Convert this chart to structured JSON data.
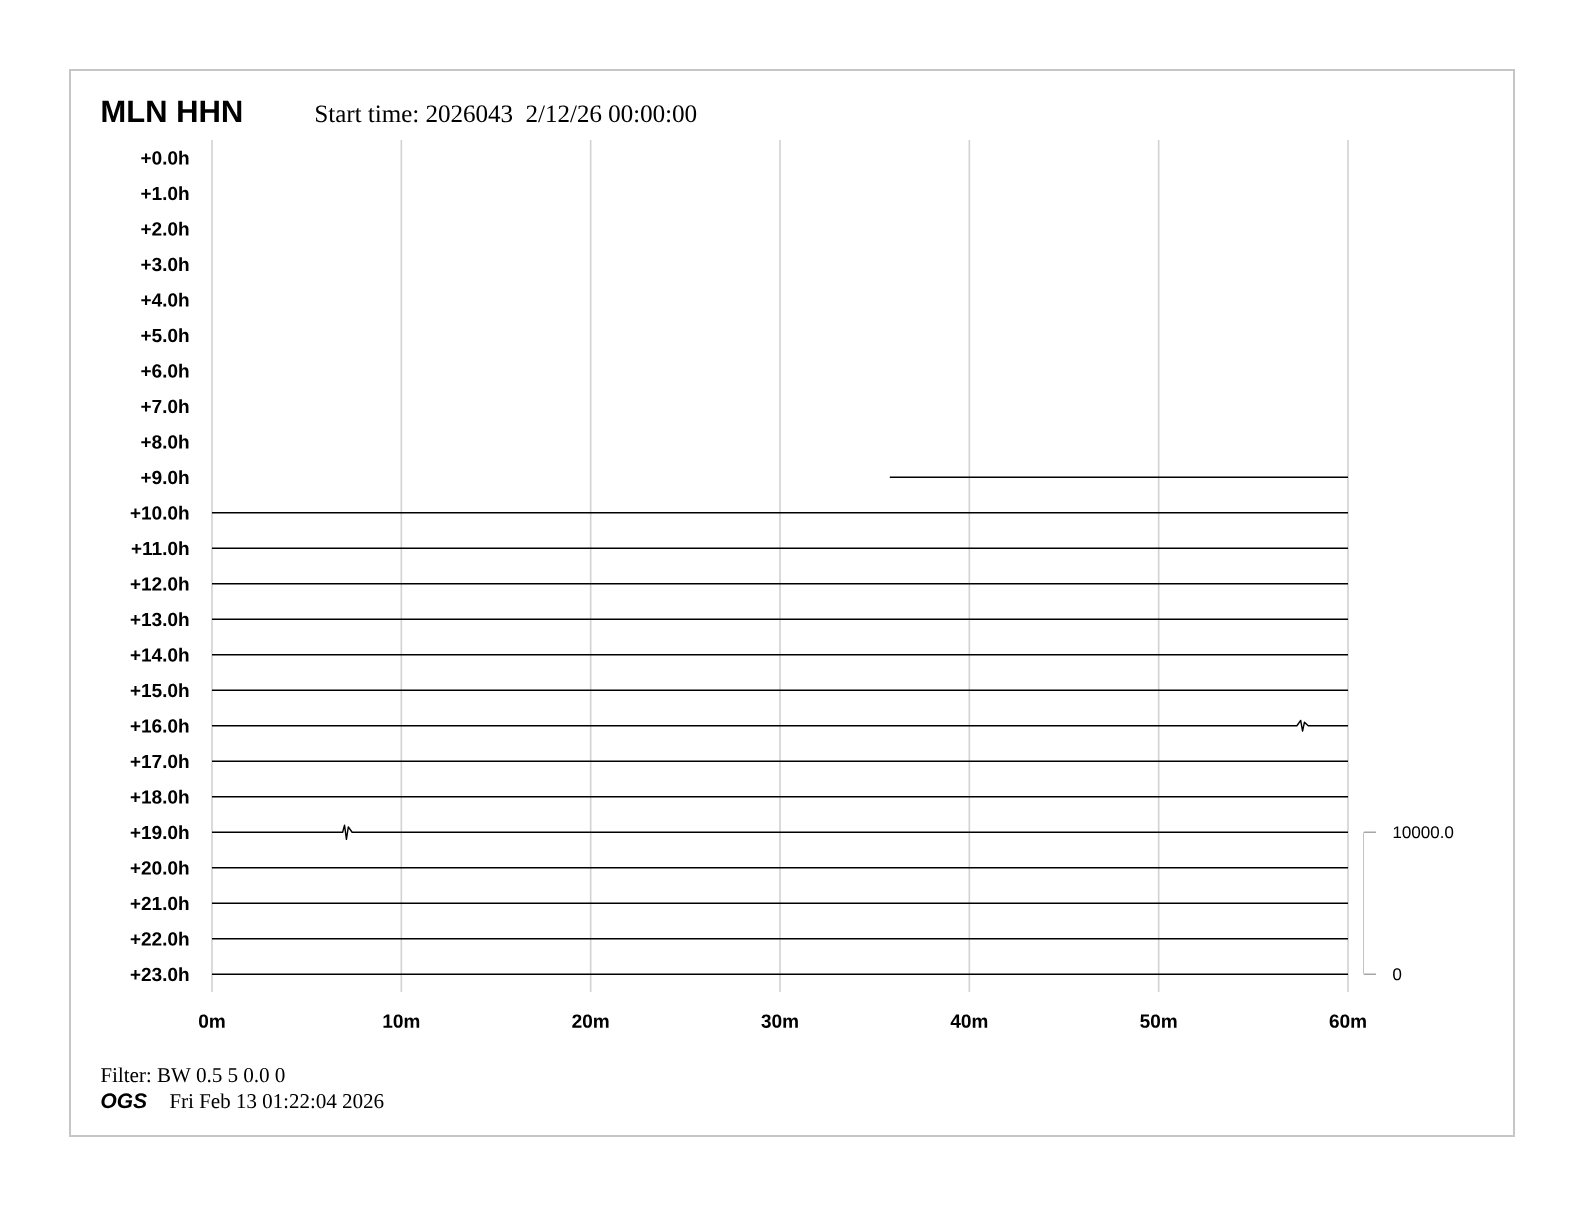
{
  "chart_data": {
    "type": "line",
    "title": "MLN HHN",
    "subtitle": "Start time: 2026043  2/12/26 00:00:00",
    "annotations": [
      "Filter: BW 0.5 5 0.0 0",
      "OGS",
      "Fri Feb 13 01:22:04 2026"
    ],
    "xlim": [
      0,
      60
    ],
    "xticks": [
      {
        "value": 0,
        "label": "0m"
      },
      {
        "value": 10,
        "label": "10m"
      },
      {
        "value": 20,
        "label": "20m"
      },
      {
        "value": 30,
        "label": "30m"
      },
      {
        "value": 40,
        "label": "40m"
      },
      {
        "value": 50,
        "label": "50m"
      },
      {
        "value": 60,
        "label": "60m"
      }
    ],
    "ylim": [
      23.5,
      -0.5
    ],
    "yticks": [
      {
        "value": 0,
        "label": "+0.0h"
      },
      {
        "value": 1,
        "label": "+1.0h"
      },
      {
        "value": 2,
        "label": "+2.0h"
      },
      {
        "value": 3,
        "label": "+3.0h"
      },
      {
        "value": 4,
        "label": "+4.0h"
      },
      {
        "value": 5,
        "label": "+5.0h"
      },
      {
        "value": 6,
        "label": "+6.0h"
      },
      {
        "value": 7,
        "label": "+7.0h"
      },
      {
        "value": 8,
        "label": "+8.0h"
      },
      {
        "value": 9,
        "label": "+9.0h"
      },
      {
        "value": 10,
        "label": "+10.0h"
      },
      {
        "value": 11,
        "label": "+11.0h"
      },
      {
        "value": 12,
        "label": "+12.0h"
      },
      {
        "value": 13,
        "label": "+13.0h"
      },
      {
        "value": 14,
        "label": "+14.0h"
      },
      {
        "value": 15,
        "label": "+15.0h"
      },
      {
        "value": 16,
        "label": "+16.0h"
      },
      {
        "value": 17,
        "label": "+17.0h"
      },
      {
        "value": 18,
        "label": "+18.0h"
      },
      {
        "value": 19,
        "label": "+19.0h"
      },
      {
        "value": 20,
        "label": "+20.0h"
      },
      {
        "value": 21,
        "label": "+21.0h"
      },
      {
        "value": 22,
        "label": "+22.0h"
      },
      {
        "value": 23,
        "label": "+23.0h"
      }
    ],
    "y2lim": [
      -1250,
      58750
    ],
    "y2ticks": [
      0,
      {
        "value": 10000,
        "label": "10000.0"
      }
    ],
    "grid": "x",
    "marker": "none",
    "series": [
      {
        "color": "#000000",
        "x": [
          35.8,
          60
        ],
        "values": [
          9,
          9
        ]
      },
      {
        "color": "#000000",
        "x": [
          0,
          60
        ],
        "values": [
          10,
          10
        ]
      },
      {
        "color": "#000000",
        "x": [
          0,
          60
        ],
        "values": [
          11,
          11
        ]
      },
      {
        "color": "#000000",
        "x": [
          0,
          60
        ],
        "values": [
          12,
          12
        ]
      },
      {
        "color": "#000000",
        "x": [
          0,
          60
        ],
        "values": [
          13,
          13
        ]
      },
      {
        "color": "#000000",
        "x": [
          0,
          60
        ],
        "values": [
          14,
          14
        ]
      },
      {
        "color": "#000000",
        "x": [
          0,
          60
        ],
        "values": [
          15,
          15
        ]
      },
      {
        "color": "#000000",
        "x": [
          0,
          57.3,
          57.5,
          57.6,
          57.7,
          57.9,
          60
        ],
        "values": [
          16,
          16,
          15.85,
          16.15,
          15.9,
          16,
          16
        ]
      },
      {
        "color": "#000000",
        "x": [
          0,
          60
        ],
        "values": [
          17,
          17
        ]
      },
      {
        "color": "#000000",
        "x": [
          0,
          60
        ],
        "values": [
          18,
          18
        ]
      },
      {
        "color": "#000000",
        "x": [
          0,
          6.9,
          7.0,
          7.1,
          7.2,
          7.4,
          60
        ],
        "values": [
          19,
          19,
          18.8,
          19.2,
          18.85,
          19,
          19
        ]
      },
      {
        "color": "#000000",
        "x": [
          0,
          60
        ],
        "values": [
          20,
          20
        ]
      },
      {
        "color": "#000000",
        "x": [
          0,
          60
        ],
        "values": [
          21,
          21
        ]
      },
      {
        "color": "#000000",
        "x": [
          0,
          60
        ],
        "values": [
          22,
          22
        ]
      },
      {
        "color": "#000000",
        "x": [
          0,
          60
        ],
        "values": [
          23,
          23
        ]
      }
    ]
  }
}
